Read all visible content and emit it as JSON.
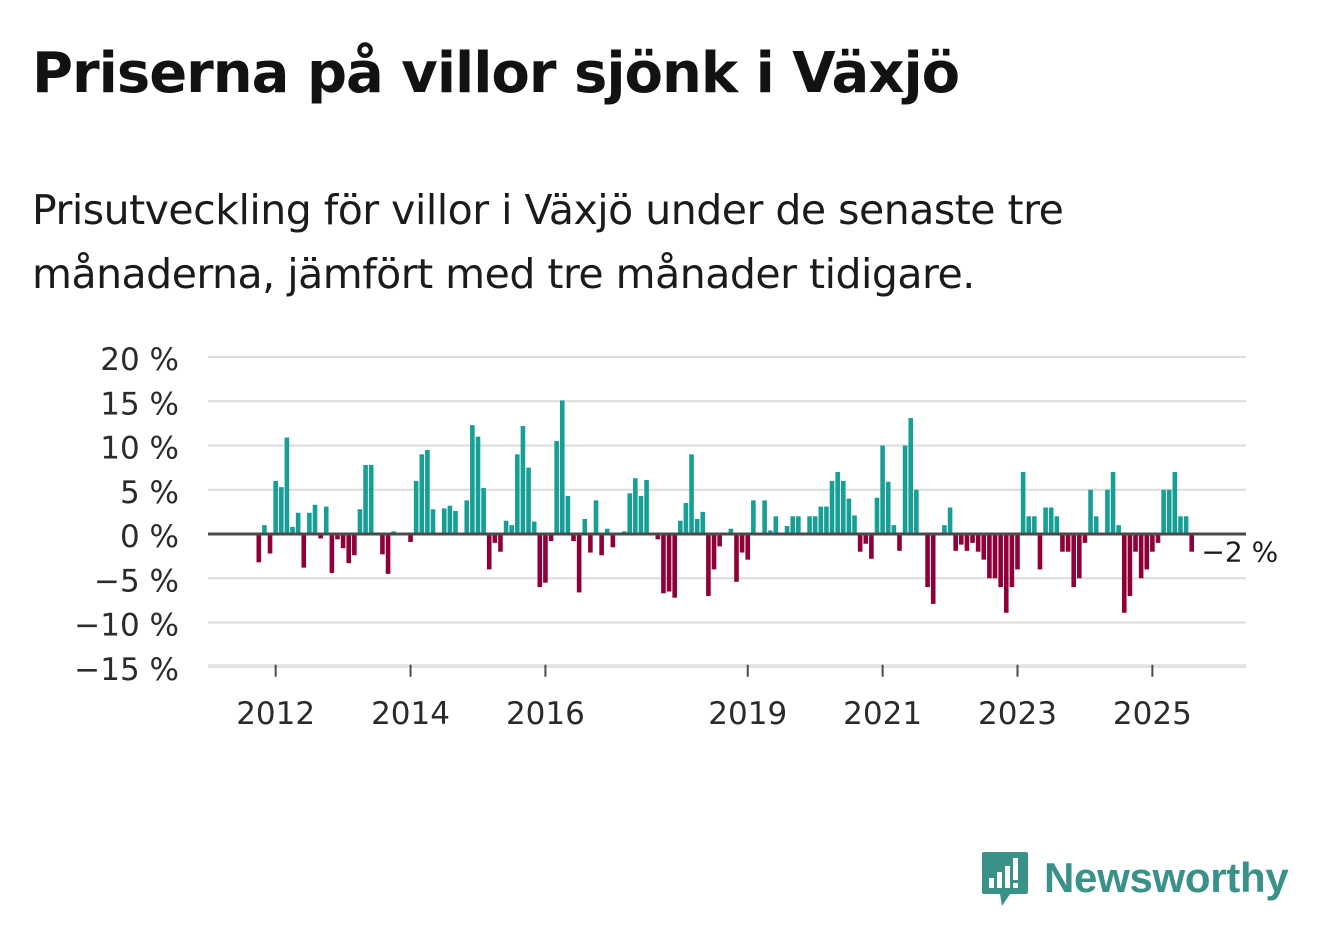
{
  "header": {
    "title": "Priserna på villor sjönk i Växjö",
    "subtitle": "Prisutveckling för villor i Växjö under de senaste tre månaderna, jämfört med tre månader tidigare."
  },
  "brand": {
    "name": "Newsworthy",
    "logo_icon": "newsworthy-chart-bubble-icon",
    "color": "#3a9188"
  },
  "colors": {
    "positive": "#16a095",
    "negative": "#8f0039",
    "grid": "#dcdcdc",
    "zero_line": "#4a4a4a"
  },
  "chart_data": {
    "type": "bar",
    "title": "",
    "xlabel": "",
    "ylabel": "",
    "ylim": [
      -15,
      20
    ],
    "yticks": [
      20,
      15,
      10,
      5,
      0,
      -5,
      -10,
      -15
    ],
    "ytick_labels": [
      "20 %",
      "15 %",
      "10 %",
      "5 %",
      "0 %",
      "−5 %",
      "−10 %",
      "−15 %"
    ],
    "xticks": [
      {
        "label": "2012",
        "index": 3
      },
      {
        "label": "2014",
        "index": 27
      },
      {
        "label": "2016",
        "index": 51
      },
      {
        "label": "2019",
        "index": 87
      },
      {
        "label": "2021",
        "index": 111
      },
      {
        "label": "2023",
        "index": 135
      },
      {
        "label": "2025",
        "index": 159
      }
    ],
    "last_value_label": "−2 %",
    "unit": "%",
    "values": [
      -3.2,
      1,
      -2.2,
      6,
      5.3,
      10.9,
      0.8,
      2.4,
      -3.8,
      2.4,
      3.3,
      -0.5,
      3.1,
      -4.4,
      -0.6,
      -1.6,
      -3.3,
      -2.4,
      2.8,
      7.8,
      7.8,
      0,
      -2.3,
      -4.5,
      0.3,
      0,
      0,
      -0.9,
      6,
      9,
      9.5,
      2.8,
      0,
      2.9,
      3.2,
      2.6,
      0,
      3.8,
      12.3,
      11,
      5.2,
      -4,
      -1,
      -2,
      1.5,
      1,
      9,
      12.2,
      7.5,
      1.4,
      -6,
      -5.5,
      -0.8,
      10.5,
      15.1,
      4.3,
      -0.8,
      -6.6,
      1.7,
      -2.1,
      3.8,
      -2.4,
      0.6,
      -1.5,
      0,
      0.3,
      4.6,
      6.3,
      4.3,
      6.1,
      0,
      -0.6,
      -6.7,
      -6.5,
      -7.2,
      1.5,
      3.5,
      9,
      1.7,
      2.5,
      -7,
      -4,
      -1.4,
      0,
      0.6,
      -5.4,
      -2.1,
      -2.9,
      3.8,
      0,
      3.8,
      0.4,
      2,
      0,
      0.9,
      2,
      2,
      0,
      2,
      2,
      3.1,
      3.1,
      6,
      7,
      6,
      4,
      2.1,
      -2,
      -1.1,
      -2.8,
      4.1,
      10,
      5.9,
      1,
      -1.9,
      10,
      13.1,
      5,
      0,
      -6,
      -7.9,
      0,
      1,
      3,
      -1.9,
      -1.2,
      -1.9,
      -1,
      -2,
      -2.9,
      -5,
      -5,
      -6,
      -8.9,
      -6,
      -4,
      7,
      2,
      2,
      -4,
      3,
      3,
      2,
      -2,
      -2,
      -6,
      -5,
      -1,
      5,
      2,
      0,
      5,
      7,
      1,
      -8.9,
      -7,
      -2,
      -5,
      -4,
      -2,
      -1,
      5,
      5,
      7,
      2,
      2,
      -2
    ]
  }
}
